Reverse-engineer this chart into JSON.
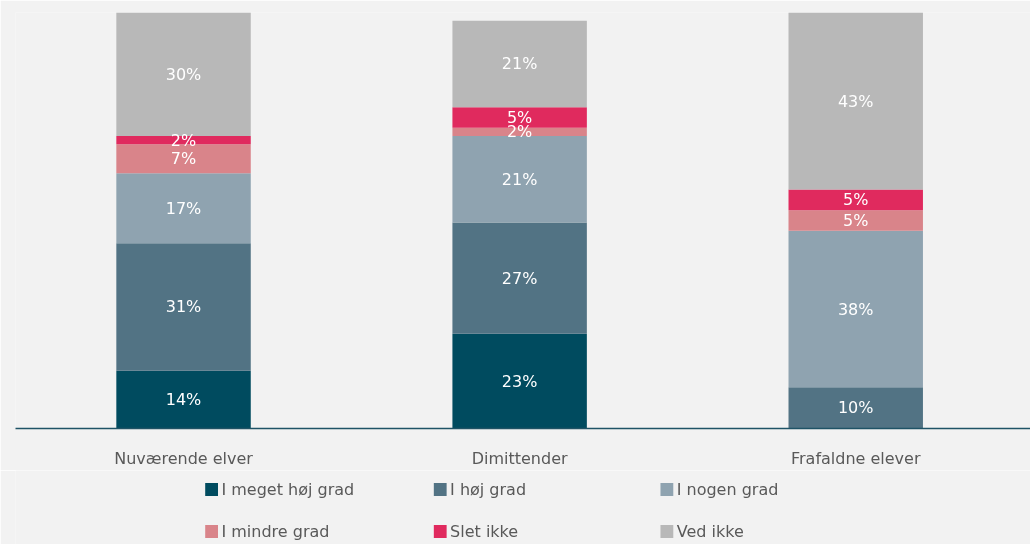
{
  "chart_data": {
    "type": "bar",
    "stacked": true,
    "legend": "bottom",
    "categories": [
      "Nuværende elver",
      "Dimittender",
      "Frafaldne elever"
    ],
    "series": [
      {
        "name": "I meget høj grad",
        "color": "#004b5f",
        "values": [
          14,
          23,
          null
        ],
        "value_labels": [
          "14%",
          "23%",
          null
        ]
      },
      {
        "name": "I høj grad",
        "color": "#527384",
        "values": [
          31,
          27,
          10
        ],
        "value_labels": [
          "31%",
          "27%",
          "10%"
        ]
      },
      {
        "name": "I nogen grad",
        "color": "#8fa3b0",
        "values": [
          17,
          21,
          38
        ],
        "value_labels": [
          "17%",
          "21%",
          "38%"
        ]
      },
      {
        "name": "I mindre grad",
        "color": "#d9848a",
        "values": [
          7,
          2,
          5
        ],
        "value_labels": [
          "7%",
          "2%",
          "5%"
        ]
      },
      {
        "name": "Slet ikke",
        "color": "#e02a5e",
        "values": [
          2,
          5,
          5
        ],
        "value_labels": [
          "2%",
          "5%",
          "5%"
        ]
      },
      {
        "name": "Ved ikke",
        "color": "#b8b8b8",
        "values": [
          30,
          21,
          43
        ],
        "value_labels": [
          "30%",
          "21%",
          "43%"
        ]
      }
    ]
  }
}
